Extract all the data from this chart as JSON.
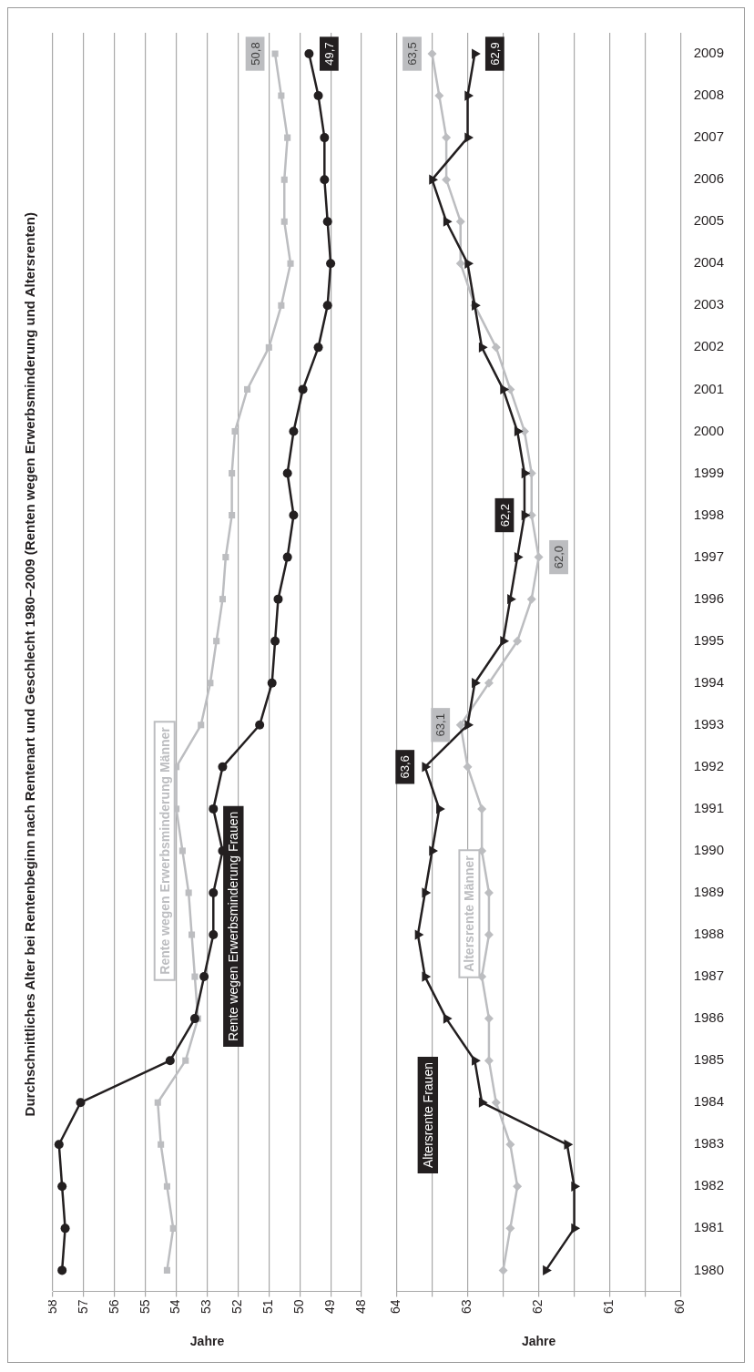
{
  "chart_data": [
    {
      "type": "line",
      "title": "Durchschnittliches Alter bei Rentenbeginn nach Rentenart und Geschlecht 1980–2009 (Renten wegen Erwerbsminderung und Altersrenten)",
      "orientation": "horizontal",
      "xlabel": "Jahre",
      "xlim": [
        58,
        48
      ],
      "xticks": [
        58,
        57,
        56,
        55,
        54,
        53,
        52,
        51,
        50,
        49,
        48
      ],
      "grid": "x",
      "tick_labels": "x",
      "categories": [
        "2009",
        "2008",
        "2007",
        "2006",
        "2005",
        "2004",
        "2003",
        "2002",
        "2001",
        "2000",
        "1999",
        "1998",
        "1997",
        "1996",
        "1995",
        "1994",
        "1993",
        "1992",
        "1991",
        "1990",
        "1989",
        "1988",
        "1987",
        "1986",
        "1985",
        "1984",
        "1983",
        "1982",
        "1981",
        "1980"
      ],
      "series": [
        {
          "name": "Rente wegen Erwerbsminderung Männer",
          "color": "#bcbdc0",
          "marker": "square",
          "values": [
            50.8,
            50.6,
            50.4,
            50.5,
            50.5,
            50.3,
            50.6,
            51.0,
            51.7,
            52.1,
            52.2,
            52.2,
            52.4,
            52.5,
            52.7,
            52.9,
            53.2,
            54.0,
            54.0,
            53.8,
            53.6,
            53.5,
            53.4,
            53.3,
            53.7,
            54.6,
            54.5,
            54.3,
            54.1,
            54.3
          ],
          "value_labels": [
            "50,8",
            null,
            null,
            null,
            null,
            null,
            null,
            null,
            null,
            null,
            null,
            null,
            null,
            null,
            null,
            null,
            null,
            null,
            null,
            null,
            null,
            null,
            null,
            null,
            null,
            null,
            null,
            null,
            null,
            null
          ]
        },
        {
          "name": "Rente wegen Erwerbsminderung Frauen",
          "color": "#231f20",
          "marker": "circle",
          "values": [
            49.7,
            49.4,
            49.2,
            49.2,
            49.1,
            49.0,
            49.1,
            49.4,
            49.9,
            50.2,
            50.4,
            50.2,
            50.4,
            50.7,
            50.8,
            50.9,
            51.3,
            52.5,
            52.8,
            52.5,
            52.8,
            52.8,
            53.1,
            53.4,
            54.2,
            57.1,
            57.8,
            57.7,
            57.6,
            57.7
          ],
          "value_labels": [
            "49,7",
            null,
            null,
            null,
            null,
            null,
            null,
            null,
            null,
            null,
            null,
            null,
            null,
            null,
            null,
            null,
            null,
            null,
            null,
            null,
            null,
            null,
            null,
            null,
            null,
            null,
            null,
            null,
            null,
            null
          ]
        }
      ]
    },
    {
      "type": "line",
      "orientation": "horizontal",
      "xlabel": "Jahre",
      "xlim": [
        64,
        60
      ],
      "xticks": [
        64,
        {
          "value": 63.5,
          "label": null
        },
        63,
        {
          "value": 62.5,
          "label": null
        },
        62,
        {
          "value": 61.5,
          "label": null
        },
        61,
        {
          "value": 60.5,
          "label": null
        },
        60
      ],
      "grid": "x",
      "categories": [
        "2009",
        "2008",
        "2007",
        "2006",
        "2005",
        "2004",
        "2003",
        "2002",
        "2001",
        "2000",
        "1999",
        "1998",
        "1997",
        "1996",
        "1995",
        "1994",
        "1993",
        "1992",
        "1991",
        "1990",
        "1989",
        "1988",
        "1987",
        "1986",
        "1985",
        "1984",
        "1983",
        "1982",
        "1981",
        "1980"
      ],
      "series": [
        {
          "name": "Altersrente Männer",
          "color": "#bcbdc0",
          "marker": "diamond",
          "values": [
            63.5,
            63.4,
            63.3,
            63.3,
            63.1,
            63.1,
            62.9,
            62.6,
            62.4,
            62.2,
            62.1,
            62.1,
            62.0,
            62.1,
            62.3,
            62.7,
            63.1,
            63.0,
            62.8,
            62.8,
            62.7,
            62.7,
            62.8,
            62.7,
            62.7,
            62.6,
            62.4,
            62.3,
            62.4,
            62.5
          ],
          "value_labels": [
            "63,5",
            null,
            null,
            null,
            null,
            null,
            null,
            null,
            null,
            null,
            null,
            null,
            "62,0",
            null,
            null,
            null,
            "63,1",
            null,
            null,
            null,
            null,
            null,
            null,
            null,
            null,
            null,
            null,
            null,
            null,
            null
          ]
        },
        {
          "name": "Altersrente Frauen",
          "color": "#231f20",
          "marker": "triangle",
          "values": [
            62.9,
            63.0,
            63.0,
            63.5,
            63.3,
            63.0,
            62.9,
            62.8,
            62.5,
            62.3,
            62.2,
            62.2,
            62.3,
            62.4,
            62.5,
            62.9,
            63.0,
            63.6,
            63.4,
            63.5,
            63.6,
            63.7,
            63.6,
            63.3,
            62.9,
            62.8,
            61.6,
            61.5,
            61.5,
            61.9
          ],
          "value_labels": [
            "62,9",
            null,
            null,
            null,
            null,
            null,
            null,
            null,
            null,
            null,
            null,
            "62,2",
            null,
            null,
            null,
            null,
            null,
            "63,6",
            null,
            null,
            null,
            null,
            null,
            null,
            null,
            null,
            null,
            null,
            null,
            null
          ]
        }
      ]
    }
  ]
}
